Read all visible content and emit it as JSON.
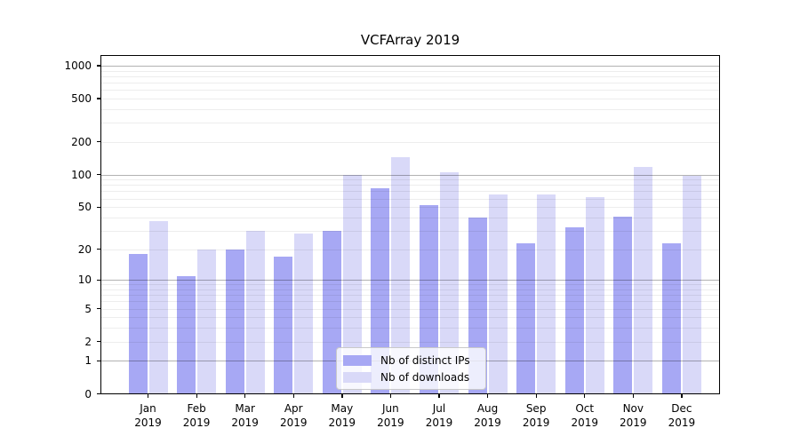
{
  "chart_data": {
    "type": "bar",
    "title": "VCFArray 2019",
    "categories": [
      "Jan 2019",
      "Feb 2019",
      "Mar 2019",
      "Apr 2019",
      "May 2019",
      "Jun 2019",
      "Jul 2019",
      "Aug 2019",
      "Sep 2019",
      "Oct 2019",
      "Nov 2019",
      "Dec 2019"
    ],
    "series": [
      {
        "name": "Nb of distinct IPs",
        "color": "#a7a8f4",
        "values": [
          18,
          11,
          20,
          17,
          30,
          75,
          52,
          40,
          23,
          32,
          41,
          23
        ]
      },
      {
        "name": "Nb of downloads",
        "color": "#d9d9f8",
        "values": [
          37,
          20,
          30,
          28,
          100,
          145,
          105,
          65,
          65,
          62,
          117,
          97
        ]
      }
    ],
    "y_axis": {
      "scale": "symlog",
      "tick_values": [
        0,
        1,
        2,
        5,
        10,
        20,
        50,
        100,
        200,
        500,
        1000
      ],
      "major_gridlines": [
        1,
        10,
        100,
        1000
      ],
      "minor_gridline_decades": [
        1,
        10,
        100
      ],
      "max": 1250
    },
    "xlabel": "",
    "ylabel": "",
    "grid": "both",
    "legend_position": "lower-center"
  }
}
